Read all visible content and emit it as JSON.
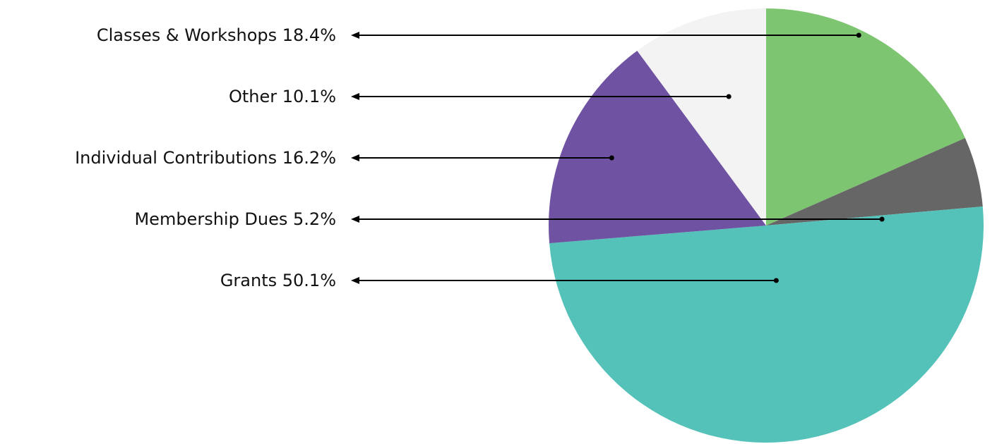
{
  "chart_data": {
    "type": "pie",
    "title": "",
    "start_angle_deg": 0,
    "direction": "clockwise",
    "legend_placement": "left",
    "slices": [
      {
        "label": "Classes & Workshops",
        "value": 18.4,
        "percent_label": "18.4%",
        "color": "#7dc571"
      },
      {
        "label": "Membership Dues",
        "value": 5.2,
        "percent_label": "5.2%",
        "color": "#666666"
      },
      {
        "label": "Grants",
        "value": 50.1,
        "percent_label": "50.1%",
        "color": "#54c2b8"
      },
      {
        "label": "Individual Contributions",
        "value": 16.2,
        "percent_label": "16.2%",
        "color": "#7052a3"
      },
      {
        "label": "Other",
        "value": 10.1,
        "percent_label": "10.1%",
        "color": "#f3f3f3"
      }
    ],
    "callout_order": [
      "Classes & Workshops",
      "Other",
      "Individual Contributions",
      "Membership Dues",
      "Grants"
    ]
  }
}
